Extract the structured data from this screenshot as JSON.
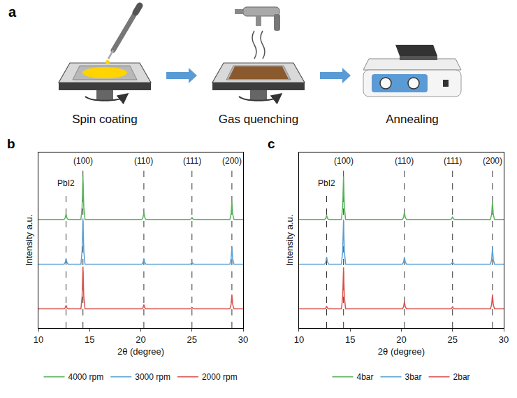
{
  "diagram": {
    "label": "a",
    "steps": [
      "Spin coating",
      "Gas quenching",
      "Annealing"
    ]
  },
  "chart_data": [
    {
      "label": "b",
      "type": "line",
      "x_label": "2θ (degree)",
      "y_label": "Intensity a.u.",
      "xlim": [
        10,
        30
      ],
      "xticks": [
        10,
        15,
        20,
        25,
        30
      ],
      "ylim": [
        0,
        110
      ],
      "tick_labels": "x",
      "grid": false,
      "legend": "bottom",
      "peaks": [
        {
          "label": "PbI2",
          "x": 12.7
        },
        {
          "label": "(100)",
          "x": 14.35
        },
        {
          "label": "(110)",
          "x": 20.3
        },
        {
          "label": "(111)",
          "x": 25.0
        },
        {
          "label": "(200)",
          "x": 28.9
        }
      ],
      "x": [
        10,
        12.5,
        12.62,
        12.7,
        12.78,
        12.9,
        14.15,
        14.27,
        14.35,
        14.43,
        14.55,
        20.1,
        20.22,
        20.3,
        20.38,
        20.5,
        24.8,
        24.92,
        25.0,
        25.08,
        25.2,
        28.7,
        28.82,
        28.9,
        28.98,
        29.1,
        30
      ],
      "series": [
        {
          "name": "4000 rpm",
          "color": "#59b35a",
          "values": [
            68,
            68,
            69.1,
            71.6,
            69.1,
            68,
            68,
            76.1,
            95,
            76.1,
            68,
            68,
            69.4,
            72.5,
            69.4,
            68,
            68,
            68.4,
            69.4,
            68.4,
            68,
            68,
            71.4,
            79.4,
            71.4,
            68,
            68
          ]
        },
        {
          "name": "3000 rpm",
          "color": "#5a9fd4",
          "values": [
            40,
            40,
            41.1,
            43.6,
            41.1,
            40,
            40,
            48.6,
            68.6,
            48.6,
            40,
            40,
            41.1,
            43.6,
            41.1,
            40,
            40,
            40.4,
            41.2,
            40.4,
            40,
            40,
            43.2,
            50.5,
            43.2,
            40,
            40
          ]
        },
        {
          "name": "2000 rpm",
          "color": "#d9534f",
          "values": [
            12,
            12,
            12.7,
            14.3,
            12.7,
            12,
            12,
            19.9,
            38.4,
            19.9,
            12,
            12,
            12.8,
            14.7,
            12.8,
            12,
            12,
            12.3,
            13,
            12.3,
            12,
            12,
            14.7,
            21,
            14.7,
            12,
            12
          ]
        }
      ]
    },
    {
      "label": "c",
      "type": "line",
      "x_label": "2θ (degree)",
      "y_label": "Intensity a.u.",
      "xlim": [
        10,
        30
      ],
      "xticks": [
        10,
        15,
        20,
        25,
        30
      ],
      "ylim": [
        0,
        110
      ],
      "tick_labels": "x",
      "grid": false,
      "legend": "bottom",
      "peaks": [
        {
          "label": "PbI2",
          "x": 12.7
        },
        {
          "label": "(100)",
          "x": 14.35
        },
        {
          "label": "(110)",
          "x": 20.3
        },
        {
          "label": "(111)",
          "x": 25.0
        },
        {
          "label": "(200)",
          "x": 28.9
        }
      ],
      "x": [
        10,
        12.5,
        12.62,
        12.7,
        12.78,
        12.9,
        14.15,
        14.27,
        14.35,
        14.43,
        14.55,
        20.1,
        20.22,
        20.3,
        20.38,
        20.5,
        24.8,
        24.92,
        25.0,
        25.08,
        25.2,
        28.7,
        28.82,
        28.9,
        28.98,
        29.1,
        30
      ],
      "series": [
        {
          "name": "4bar",
          "color": "#59b35a",
          "values": [
            68,
            68,
            68.8,
            70.7,
            68.8,
            68,
            68,
            76.1,
            95,
            76.1,
            68,
            68,
            69.4,
            72.5,
            69.4,
            68,
            68,
            68.5,
            69.8,
            68.5,
            68,
            68,
            71.3,
            79,
            71.3,
            68,
            68
          ]
        },
        {
          "name": "3bar",
          "color": "#5a9fd4",
          "values": [
            40,
            40,
            41.4,
            44.5,
            41.4,
            40,
            40,
            48.4,
            68,
            48.4,
            40,
            40,
            41.4,
            44.5,
            41.4,
            40,
            40,
            40.4,
            41.4,
            40.4,
            40,
            40,
            43,
            50,
            43,
            40,
            40
          ]
        },
        {
          "name": "2bar",
          "color": "#d9534f",
          "values": [
            12,
            12,
            12.5,
            13.8,
            12.5,
            12,
            12,
            19.8,
            38,
            19.8,
            12,
            12,
            13.4,
            16.5,
            13.4,
            12,
            12,
            12.4,
            13.4,
            12.4,
            12,
            12,
            14.7,
            21,
            14.7,
            12,
            12
          ]
        }
      ]
    }
  ]
}
